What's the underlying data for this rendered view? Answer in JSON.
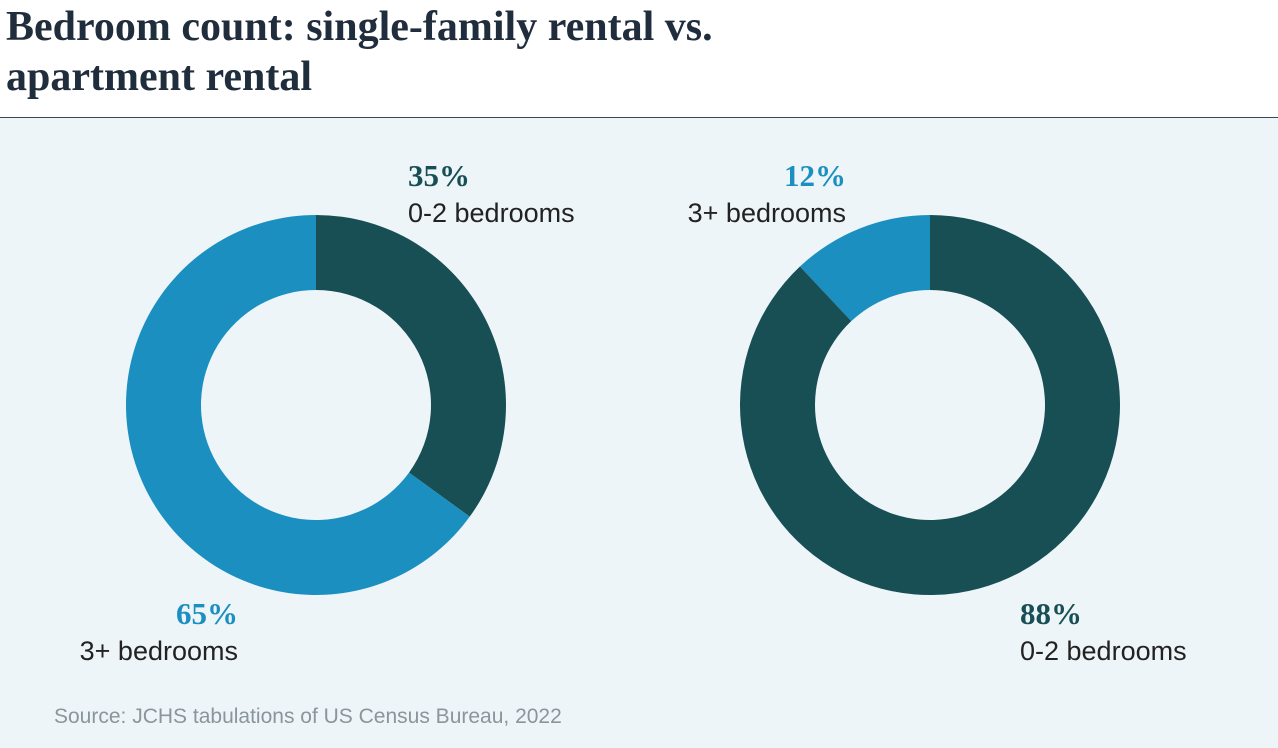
{
  "title": "Bedroom count: single-family rental vs. apartment rental",
  "source": "Source: JCHS tabulations of US Census Bureau, 2022",
  "chart_data": [
    {
      "type": "donut",
      "direction": "clockwise",
      "categories": [
        "0-2 bedrooms",
        "3+ bedrooms"
      ],
      "values": [
        35,
        65
      ],
      "value_labels": [
        "35%",
        "65%"
      ],
      "colors": [
        "#184f55",
        "#1a8fc0"
      ]
    },
    {
      "type": "donut",
      "direction": "counterclockwise",
      "categories": [
        "3+ bedrooms",
        "0-2 bedrooms"
      ],
      "values": [
        12,
        88
      ],
      "value_labels": [
        "12%",
        "88%"
      ],
      "colors": [
        "#1a8fc0",
        "#184f55"
      ]
    }
  ]
}
